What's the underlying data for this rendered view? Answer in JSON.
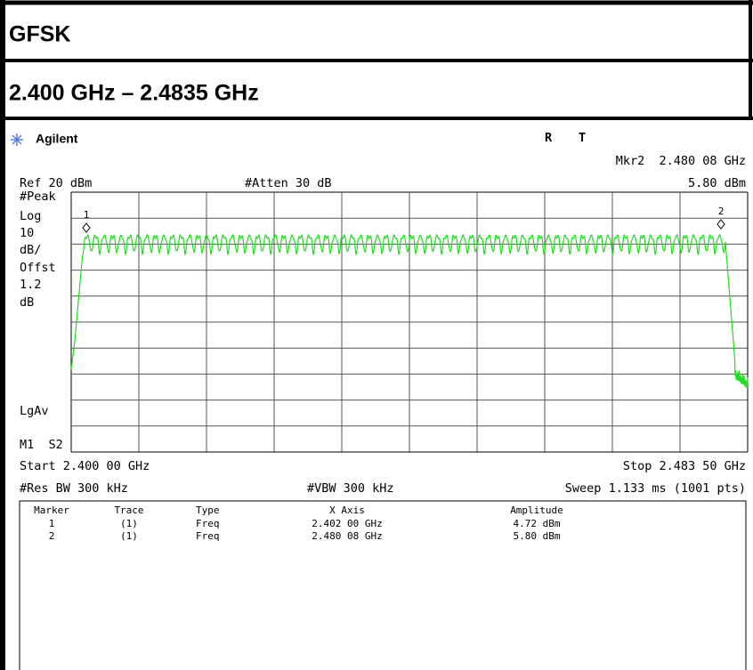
{
  "header": {
    "title": "GFSK",
    "subtitle": "2.400 GHz – 2.4835 GHz"
  },
  "analyzer": {
    "brand": "Agilent",
    "status": [
      "R",
      "T"
    ],
    "marker_readout": "Mkr2  2.480 08 GHz",
    "marker_amplitude": "5.80 dBm",
    "ref_level": "Ref 20 dBm",
    "attenuation": "#Atten 30 dB",
    "side_labels": [
      "#Peak",
      "Log",
      "10",
      "dB/",
      "Offst",
      "1.2",
      "dB"
    ],
    "detector": "LgAv",
    "trace_mode": "M1  S2",
    "marker_labels": [
      "1",
      "2"
    ],
    "start": "Start 2.400 00 GHz",
    "stop": "Stop 2.483 50 GHz",
    "rbw": "#Res BW 300 kHz",
    "vbw": "#VBW 300 kHz",
    "sweep": "Sweep 1.133 ms (1001 pts)"
  },
  "table": {
    "columns": [
      "Marker",
      "Trace",
      "Type",
      "X Axis",
      "Amplitude"
    ],
    "rows": [
      [
        "1",
        "(1)",
        "Freq",
        "2.402 00 GHz",
        "4.72 dBm"
      ],
      [
        "2",
        "(1)",
        "Freq",
        "2.480 08 GHz",
        "5.80 dBm"
      ]
    ]
  }
}
